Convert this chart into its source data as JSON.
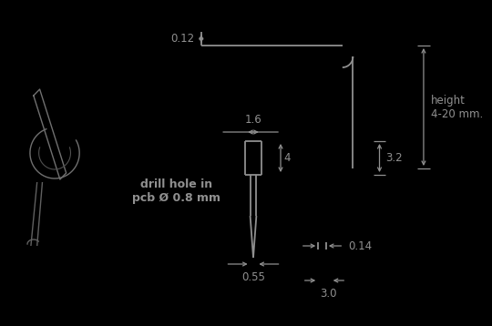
{
  "bg_color": "#000000",
  "line_color": "#909090",
  "text_color": "#909090",
  "fig_width": 5.4,
  "fig_height": 3.58,
  "dpi": 100,
  "labels": {
    "dim_012": "0.12",
    "dim_16": "1.6",
    "dim_4": "4",
    "dim_32": "3.2",
    "dim_055": "0.55",
    "dim_014": "0.14",
    "dim_30": "3.0",
    "height_label": "height\n4-20 mm.",
    "drill_label": "drill hole in\npcb Ø 0.8 mm"
  }
}
